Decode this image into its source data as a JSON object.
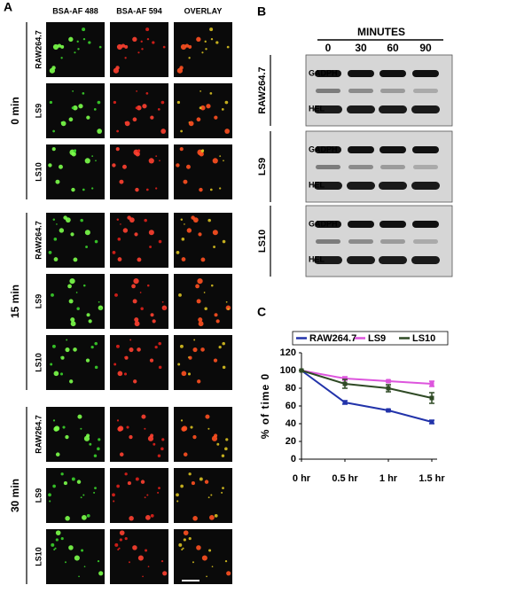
{
  "panel_a": {
    "label": "A",
    "columns": [
      "BSA-AF 488",
      "BSA-AF 594",
      "OVERLAY"
    ],
    "groups": [
      {
        "label": "0 min",
        "rows": [
          "RAW264.7",
          "LS9",
          "LS10"
        ]
      },
      {
        "label": "15 min",
        "rows": [
          "RAW264.7",
          "LS9",
          "LS10"
        ]
      },
      {
        "label": "30 min",
        "rows": [
          "RAW264.7",
          "LS9",
          "LS10"
        ]
      }
    ]
  },
  "panel_b": {
    "label": "B",
    "header": "MINUTES",
    "lanes": [
      "0",
      "30",
      "60",
      "90"
    ],
    "blots": [
      {
        "label": "RAW264.7",
        "bands": [
          "GADPH",
          "HEL"
        ]
      },
      {
        "label": "LS9",
        "bands": [
          "GADPH",
          "HEL"
        ]
      },
      {
        "label": "LS10",
        "bands": [
          "GADPH",
          "HEL"
        ]
      }
    ]
  },
  "chart_data": {
    "type": "line",
    "panel_label": "C",
    "y_label": "% of time 0",
    "categories": [
      "0 hr",
      "0.5 hr",
      "1 hr",
      "1.5 hr"
    ],
    "series": [
      {
        "name": "RAW264.7",
        "color": "#2233aa",
        "values": [
          100,
          64,
          55,
          42
        ],
        "errors": [
          0,
          2,
          1,
          2
        ]
      },
      {
        "name": "LS9",
        "color": "#dd55dd",
        "values": [
          100,
          91,
          88,
          85
        ],
        "errors": [
          0,
          2,
          1,
          3
        ]
      },
      {
        "name": "LS10",
        "color": "#2f4a25",
        "values": [
          100,
          85,
          80,
          69
        ],
        "errors": [
          0,
          5,
          4,
          6
        ]
      }
    ],
    "ylim": [
      0,
      120
    ],
    "yticks": [
      0,
      20,
      40,
      60,
      80,
      100,
      120
    ]
  }
}
